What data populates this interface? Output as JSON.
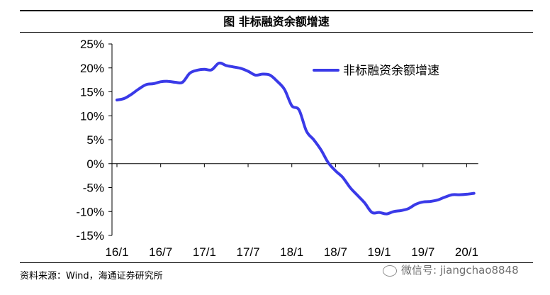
{
  "figure_title": "图  非标融资余额增速",
  "source_note": "资料来源：Wind，海通证券研究所",
  "watermark_text": "微信号: jiangchao8848",
  "chart_data": {
    "type": "line",
    "title": "",
    "xlabel": "",
    "ylabel": "",
    "x_ticks": [
      "16/1",
      "16/7",
      "17/1",
      "17/7",
      "18/1",
      "18/7",
      "19/1",
      "19/7",
      "20/1"
    ],
    "y_ticks": [
      "25%",
      "20%",
      "15%",
      "10%",
      "5%",
      "0%",
      "-5%",
      "-10%",
      "-15%"
    ],
    "ylim": [
      -15,
      25
    ],
    "grid": false,
    "legend_position": "top-right",
    "line_color": "#3a3ae8",
    "series": [
      {
        "name": "非标融资余额增速",
        "x": [
          "16/1",
          "16/2",
          "16/3",
          "16/4",
          "16/5",
          "16/6",
          "16/7",
          "16/8",
          "16/9",
          "16/10",
          "16/11",
          "16/12",
          "17/1",
          "17/2",
          "17/3",
          "17/4",
          "17/5",
          "17/6",
          "17/7",
          "17/8",
          "17/9",
          "17/10",
          "17/11",
          "17/12",
          "18/1",
          "18/2",
          "18/3",
          "18/4",
          "18/5",
          "18/6",
          "18/7",
          "18/8",
          "18/9",
          "18/10",
          "18/11",
          "18/12",
          "19/1",
          "19/2",
          "19/3",
          "19/4",
          "19/5",
          "19/6",
          "19/7",
          "19/8",
          "19/9",
          "19/10",
          "19/11",
          "19/12",
          "20/1",
          "20/2"
        ],
        "values": [
          13.3,
          13.6,
          14.5,
          15.6,
          16.5,
          16.7,
          17.1,
          17.2,
          17.0,
          17.0,
          18.9,
          19.5,
          19.7,
          19.6,
          21.0,
          20.5,
          20.2,
          19.9,
          19.3,
          18.5,
          18.7,
          18.5,
          17.2,
          15.5,
          12.1,
          11.2,
          6.8,
          5.0,
          2.9,
          0.2,
          -1.5,
          -2.9,
          -5.0,
          -6.6,
          -8.2,
          -10.2,
          -10.2,
          -10.5,
          -10.0,
          -9.8,
          -9.4,
          -8.5,
          -8.0,
          -7.9,
          -7.6,
          -7.0,
          -6.5,
          -6.5,
          -6.4,
          -6.2
        ]
      }
    ]
  }
}
